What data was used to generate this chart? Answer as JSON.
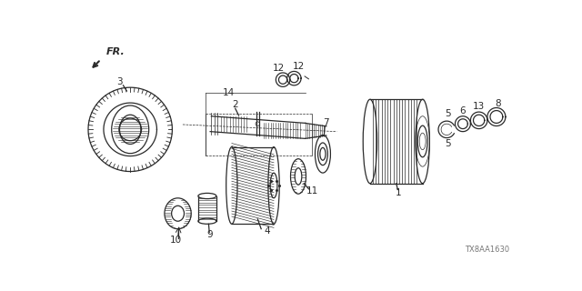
{
  "background_color": "#ffffff",
  "watermark": "TX8AA1630",
  "fr_label": "FR.",
  "line_color": "#2a2a2a",
  "label_fontsize": 7.5,
  "watermark_fontsize": 6.0,
  "fig_width": 6.4,
  "fig_height": 3.2,
  "dpi": 100
}
